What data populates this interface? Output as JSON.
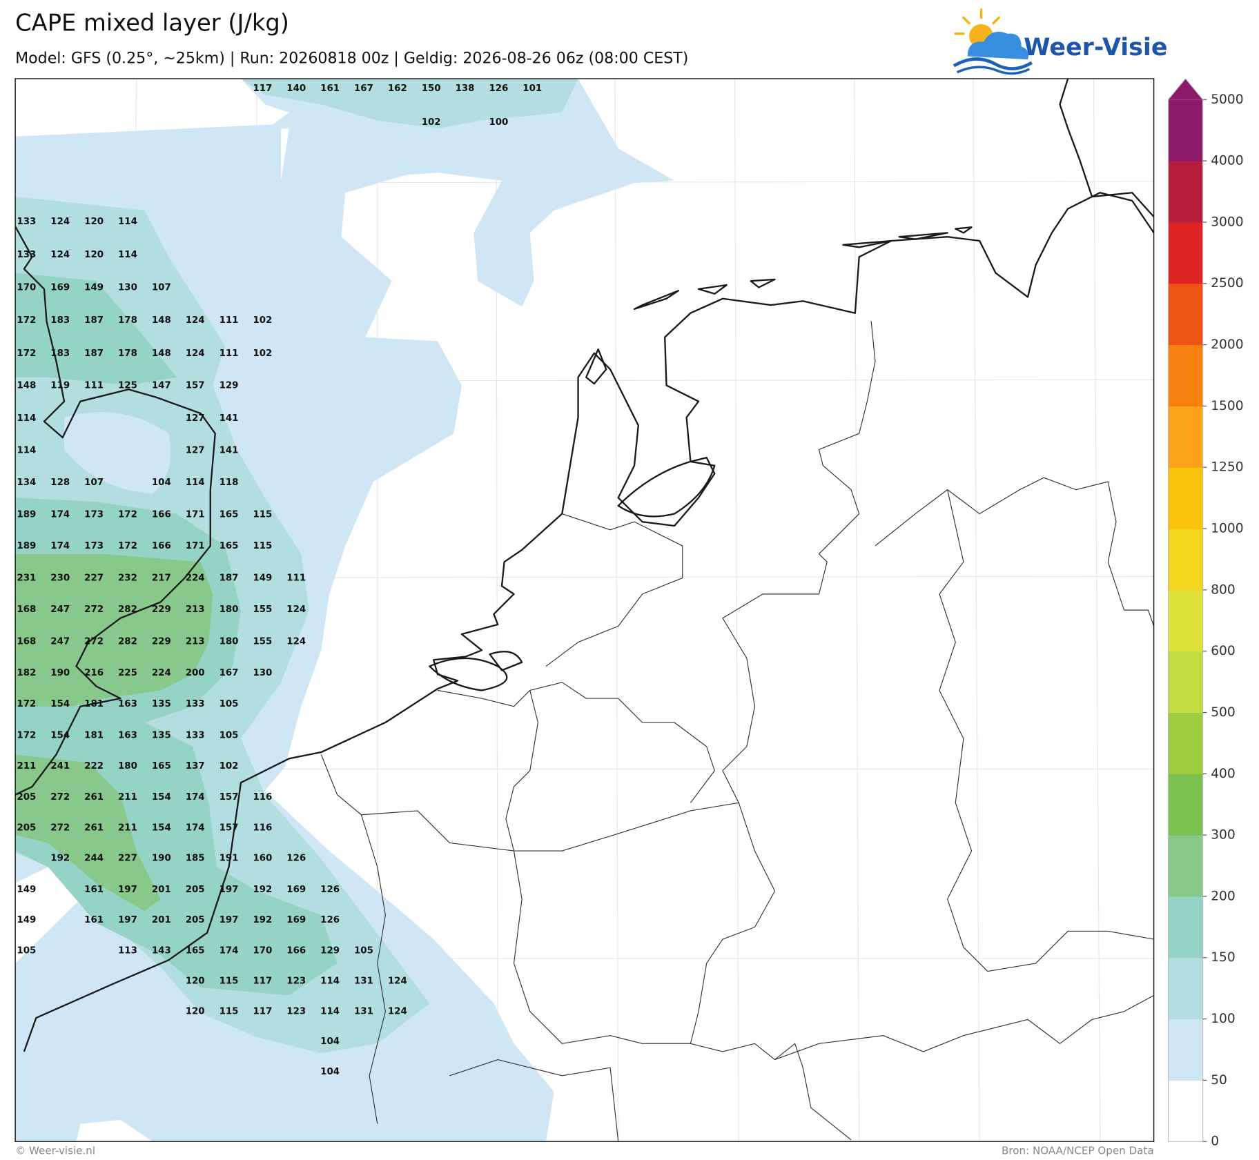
{
  "header": {
    "title": "CAPE mixed layer (J/kg)",
    "subtitle": "Model: GFS (0.25°, ~25km)  |  Run: 20260818 00z  |  Geldig: 2026-08-26 06z (08:00 CEST)"
  },
  "logo": {
    "text": "Weer-Visie"
  },
  "map": {
    "value_rows": [
      [
        null,
        null,
        null,
        null,
        null,
        null,
        null,
        117,
        140,
        161,
        167,
        162,
        150,
        138,
        126,
        101
      ],
      [
        null,
        null,
        null,
        null,
        null,
        null,
        null,
        null,
        null,
        null,
        null,
        null,
        102,
        null,
        100
      ],
      [
        133,
        124,
        120,
        114
      ],
      [
        133,
        124,
        120,
        114
      ],
      [
        170,
        169,
        149,
        130,
        107
      ],
      [
        172,
        183,
        187,
        178,
        148,
        124,
        111,
        102
      ],
      [
        172,
        183,
        187,
        178,
        148,
        124,
        111,
        102
      ],
      [
        148,
        119,
        111,
        125,
        147,
        157,
        129
      ],
      [
        114,
        null,
        null,
        null,
        null,
        127,
        141
      ],
      [
        114,
        null,
        null,
        null,
        null,
        127,
        141
      ],
      [
        134,
        128,
        107,
        null,
        104,
        114,
        118
      ],
      [
        189,
        174,
        173,
        172,
        166,
        171,
        165,
        115
      ],
      [
        189,
        174,
        173,
        172,
        166,
        171,
        165,
        115
      ],
      [
        231,
        230,
        227,
        232,
        217,
        224,
        187,
        149,
        111
      ],
      [
        168,
        247,
        272,
        282,
        229,
        213,
        180,
        155,
        124
      ],
      [
        168,
        247,
        272,
        282,
        229,
        213,
        180,
        155,
        124
      ],
      [
        182,
        190,
        216,
        225,
        224,
        200,
        167,
        130
      ],
      [
        172,
        154,
        181,
        163,
        135,
        133,
        105
      ],
      [
        172,
        154,
        181,
        163,
        135,
        133,
        105
      ],
      [
        211,
        241,
        222,
        180,
        165,
        137,
        102
      ],
      [
        205,
        272,
        261,
        211,
        154,
        174,
        157,
        116
      ],
      [
        205,
        272,
        261,
        211,
        154,
        174,
        157,
        116
      ],
      [
        null,
        192,
        244,
        227,
        190,
        185,
        191,
        160,
        126
      ],
      [
        149,
        null,
        161,
        197,
        201,
        205,
        197,
        192,
        169,
        126
      ],
      [
        149,
        null,
        161,
        197,
        201,
        205,
        197,
        192,
        169,
        126
      ],
      [
        105,
        null,
        null,
        113,
        143,
        165,
        174,
        170,
        166,
        129,
        105
      ],
      [
        null,
        null,
        null,
        null,
        null,
        120,
        115,
        117,
        123,
        114,
        131,
        124
      ],
      [
        null,
        null,
        null,
        null,
        null,
        120,
        115,
        117,
        123,
        114,
        131,
        124
      ],
      [
        null,
        null,
        null,
        null,
        null,
        null,
        null,
        null,
        null,
        104
      ],
      [
        null,
        null,
        null,
        null,
        null,
        null,
        null,
        null,
        null,
        104
      ]
    ]
  },
  "colorbar": {
    "ticks": [
      0,
      50,
      100,
      150,
      200,
      300,
      400,
      500,
      600,
      800,
      1000,
      1250,
      1500,
      2000,
      2500,
      3000,
      4000,
      5000
    ],
    "colors": [
      "#ffffff",
      "#cfe6f5",
      "#b2dedf",
      "#94d3c5",
      "#88c98b",
      "#7bc04f",
      "#9ccc3f",
      "#c4dc42",
      "#e0e03b",
      "#f3d51b",
      "#fbc30c",
      "#fca21b",
      "#f8800f",
      "#ee5413",
      "#de2324",
      "#b51f3b",
      "#8d1a68"
    ]
  },
  "footer": {
    "left": "© Weer-visie.nl",
    "right": "Bron: NOAA/NCEP Open Data"
  }
}
